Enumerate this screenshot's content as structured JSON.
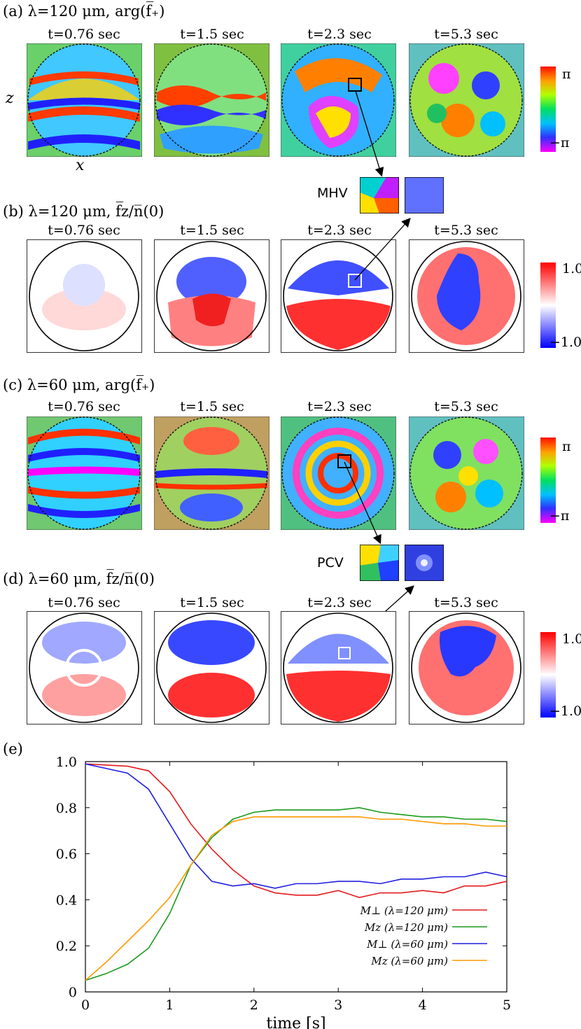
{
  "panels": {
    "a": {
      "label": "(a) λ=120 μm, arg(f̅₊)"
    },
    "b": {
      "label": "(b) λ=120 μm, f̅z/n̅(0)"
    },
    "c": {
      "label": "(c) λ=60 μm, arg(f̅₊)"
    },
    "d": {
      "label": "(d) λ=60 μm, f̅z/n̅(0)"
    },
    "e": {
      "label": "(e)"
    }
  },
  "times": [
    "t=0.76 sec",
    "t=1.5 sec",
    "t=2.3 sec",
    "t=5.3 sec"
  ],
  "axes": {
    "x": "x",
    "z": "z"
  },
  "phase_colorbar": {
    "max": "π",
    "min": "−π"
  },
  "density_colorbar": {
    "max": "1.0",
    "min": "−1.0"
  },
  "insets": {
    "mhv": "MHV",
    "pcv": "PCV"
  },
  "colors": {
    "red": "#e41a1c",
    "green": "#1a9a1a",
    "blue": "#1f1fe0",
    "orange": "#ff9a00"
  },
  "chart_data": {
    "type": "line",
    "xlabel": "time [s]",
    "ylabel": "",
    "xlim": [
      0,
      5
    ],
    "ylim": [
      0,
      1.0
    ],
    "xticks": [
      "0",
      "1",
      "2",
      "3",
      "4",
      "5"
    ],
    "yticks": [
      "0",
      "0.2",
      "0.4",
      "0.6",
      "0.8",
      "1.0"
    ],
    "legend_position": "bottom-right",
    "series": [
      {
        "name": "M⊥ (λ=120 μm)",
        "color": "#e41a1c",
        "x": [
          0,
          0.25,
          0.5,
          0.75,
          1.0,
          1.25,
          1.5,
          1.75,
          2.0,
          2.25,
          2.5,
          2.75,
          3.0,
          3.25,
          3.5,
          3.75,
          4.0,
          4.25,
          4.5,
          4.75,
          5.0
        ],
        "y": [
          0.99,
          0.985,
          0.98,
          0.96,
          0.87,
          0.73,
          0.62,
          0.53,
          0.46,
          0.43,
          0.42,
          0.42,
          0.44,
          0.41,
          0.43,
          0.43,
          0.44,
          0.43,
          0.46,
          0.46,
          0.48
        ]
      },
      {
        "name": "Mz (λ=120 μm)",
        "color": "#1a9a1a",
        "x": [
          0,
          0.25,
          0.5,
          0.75,
          1.0,
          1.25,
          1.5,
          1.75,
          2.0,
          2.25,
          2.5,
          2.75,
          3.0,
          3.25,
          3.5,
          3.75,
          4.0,
          4.25,
          4.5,
          4.75,
          5.0
        ],
        "y": [
          0.05,
          0.08,
          0.12,
          0.19,
          0.34,
          0.55,
          0.67,
          0.75,
          0.78,
          0.79,
          0.79,
          0.79,
          0.79,
          0.8,
          0.78,
          0.77,
          0.76,
          0.76,
          0.75,
          0.75,
          0.74
        ]
      },
      {
        "name": "M⊥ (λ=60 μm)",
        "color": "#1f1fe0",
        "x": [
          0,
          0.25,
          0.5,
          0.75,
          1.0,
          1.25,
          1.5,
          1.75,
          2.0,
          2.25,
          2.5,
          2.75,
          3.0,
          3.25,
          3.5,
          3.75,
          4.0,
          4.25,
          4.5,
          4.75,
          5.0
        ],
        "y": [
          0.99,
          0.97,
          0.95,
          0.88,
          0.73,
          0.58,
          0.48,
          0.46,
          0.47,
          0.45,
          0.47,
          0.47,
          0.48,
          0.48,
          0.47,
          0.49,
          0.49,
          0.5,
          0.5,
          0.52,
          0.5
        ]
      },
      {
        "name": "Mz (λ=60 μm)",
        "color": "#ff9a00",
        "x": [
          0,
          0.25,
          0.5,
          0.75,
          1.0,
          1.25,
          1.5,
          1.75,
          2.0,
          2.25,
          2.5,
          2.75,
          3.0,
          3.25,
          3.5,
          3.75,
          4.0,
          4.25,
          4.5,
          4.75,
          5.0
        ],
        "y": [
          0.05,
          0.13,
          0.22,
          0.31,
          0.41,
          0.55,
          0.68,
          0.74,
          0.76,
          0.76,
          0.76,
          0.76,
          0.76,
          0.76,
          0.75,
          0.75,
          0.74,
          0.73,
          0.73,
          0.72,
          0.72
        ]
      }
    ]
  }
}
